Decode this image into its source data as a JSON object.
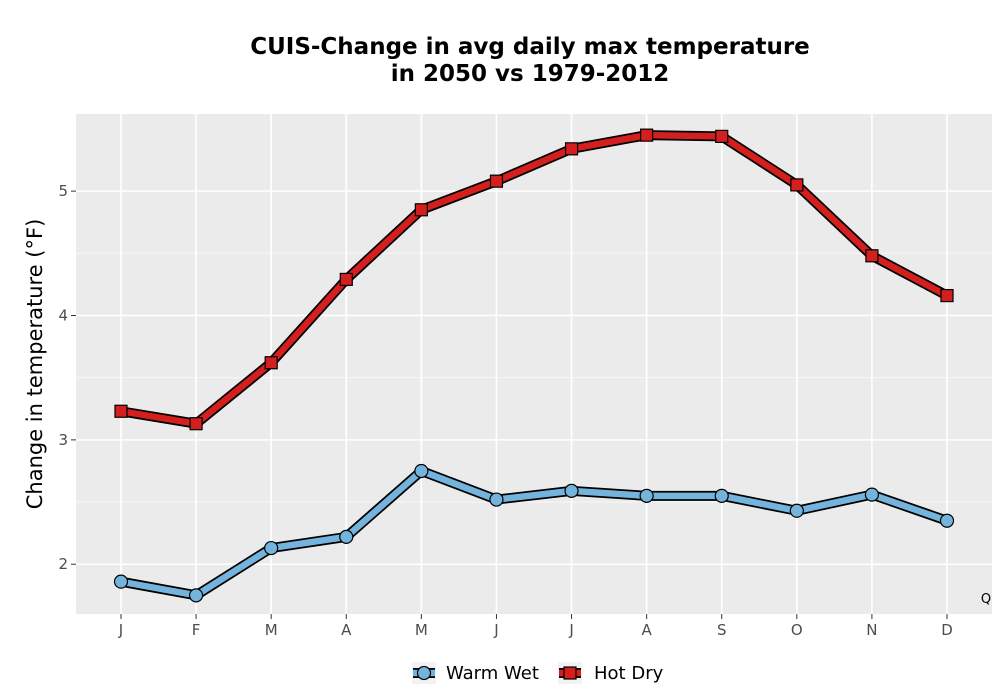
{
  "chart_data": {
    "type": "line",
    "title_line1": "CUIS-Change in avg daily max temperature",
    "title_line2": "in 2050 vs 1979-2012",
    "xlabel": "",
    "ylabel": "Change in temperature (°F)",
    "categories": [
      "J",
      "F",
      "M",
      "A",
      "M",
      "J",
      "J",
      "A",
      "S",
      "O",
      "N",
      "D"
    ],
    "ylim": [
      1.6,
      5.62
    ],
    "yticks": [
      2,
      3,
      4,
      5
    ],
    "grid": true,
    "legend_position": "bottom",
    "corner_label": "Q",
    "series": [
      {
        "name": "Warm Wet",
        "marker": "circle",
        "color": "#74b3dc",
        "values": [
          1.86,
          1.75,
          2.13,
          2.22,
          2.75,
          2.52,
          2.59,
          2.55,
          2.55,
          2.43,
          2.56,
          2.35
        ]
      },
      {
        "name": "Hot Dry",
        "marker": "square",
        "color": "#d41f1f",
        "values": [
          3.23,
          3.13,
          3.62,
          4.29,
          4.85,
          5.08,
          5.34,
          5.45,
          5.44,
          5.05,
          4.48,
          4.16
        ]
      }
    ]
  }
}
